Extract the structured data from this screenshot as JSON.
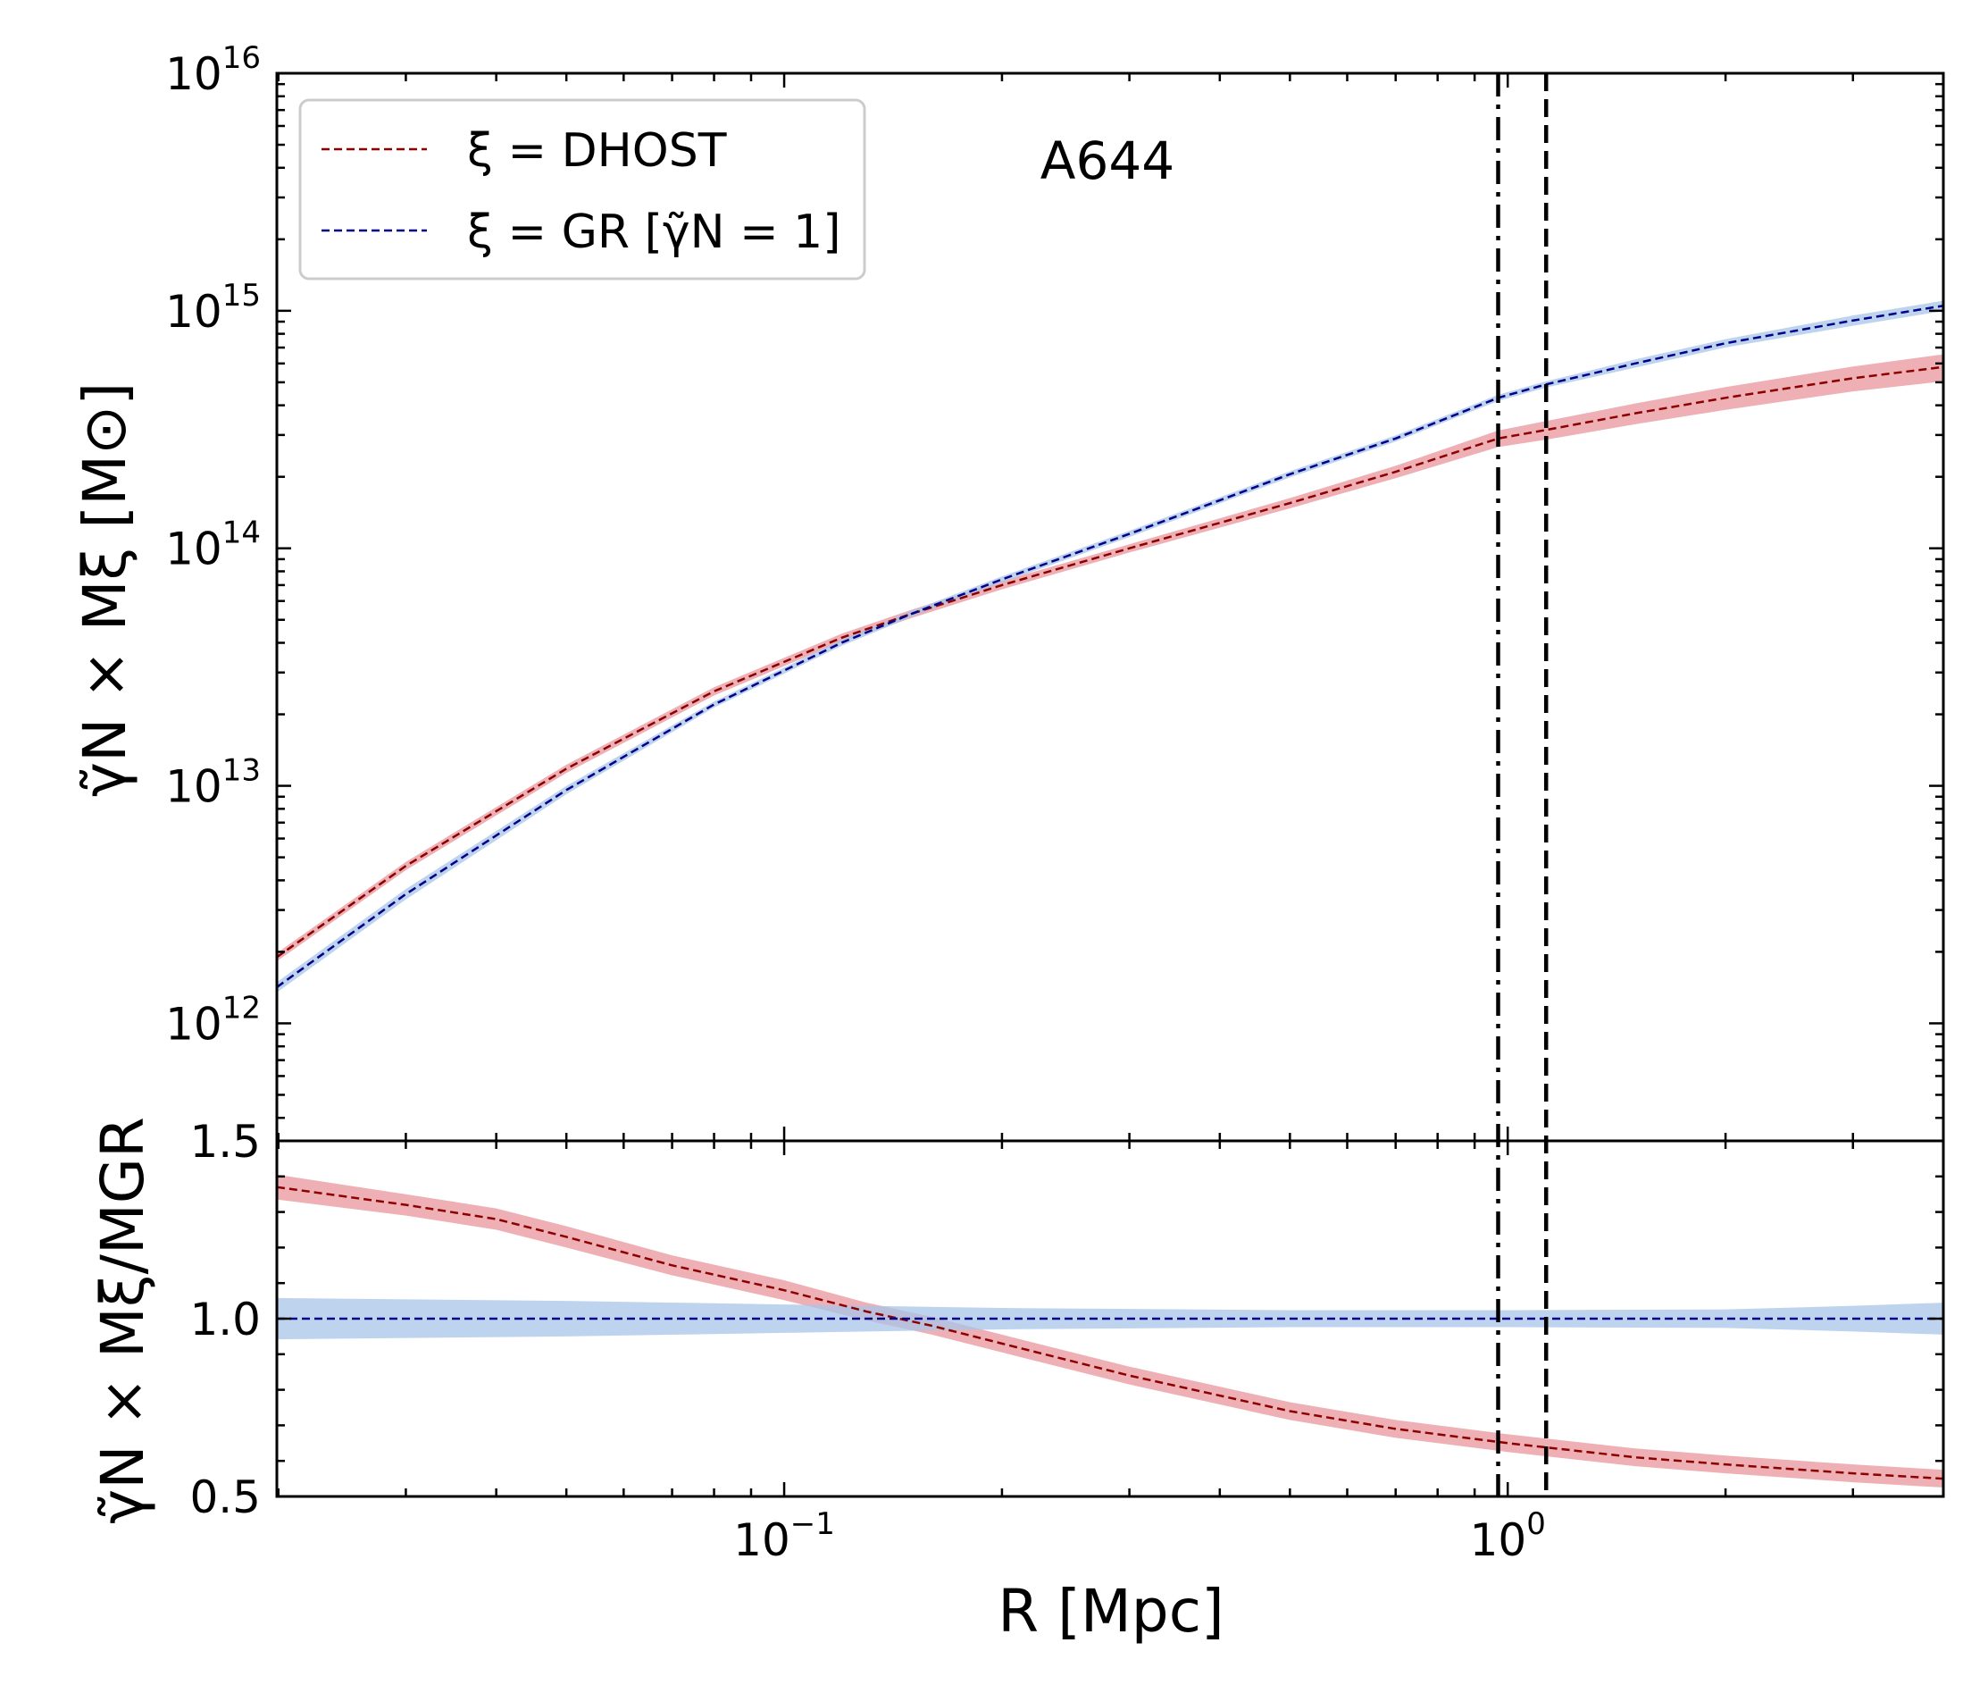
{
  "chart_data": [
    {
      "panel": "top",
      "type": "line",
      "title": "",
      "annotation": "A644",
      "xscale": "log",
      "yscale": "log",
      "xlim": [
        0.0199,
        4.0
      ],
      "ylim": [
        320000000000.0,
        1e+16
      ],
      "ylabel": "γ̃N × Mξ [M⊙]",
      "y_ticks": [
        {
          "value": 1000000000000.0,
          "base": "10",
          "exp": "12"
        },
        {
          "value": 10000000000000.0,
          "base": "10",
          "exp": "13"
        },
        {
          "value": 100000000000000.0,
          "base": "10",
          "exp": "14"
        },
        {
          "value": 1000000000000000.0,
          "base": "10",
          "exp": "15"
        },
        {
          "value": 1e+16,
          "base": "10",
          "exp": "16"
        }
      ],
      "legend": {
        "location": "upper left",
        "entries": [
          {
            "label": "ξ = DHOST",
            "series": "DHOST"
          },
          {
            "label": "ξ = GR [γ̃N = 1]",
            "series": "GR"
          }
        ]
      },
      "vlines": [
        {
          "x": 0.97,
          "style": "dash-dot"
        },
        {
          "x": 1.13,
          "style": "dashed"
        }
      ],
      "series": [
        {
          "name": "DHOST",
          "line_color": "#8b0000",
          "band_color": "#e8969b",
          "x": [
            0.0199,
            0.03,
            0.05,
            0.08,
            0.12,
            0.15,
            0.2,
            0.3,
            0.5,
            0.7,
            0.97,
            1.13,
            1.5,
            2.0,
            3.0,
            4.0
          ],
          "values": [
            1900000000000.0,
            4600000000000.0,
            11800000000000.0,
            25000000000000.0,
            42000000000000.0,
            53000000000000.0,
            70000000000000.0,
            100000000000000.0,
            155000000000000.0,
            210000000000000.0,
            290000000000000.0,
            315000000000000.0,
            370000000000000.0,
            430000000000000.0,
            520000000000000.0,
            580000000000000.0
          ],
          "band_rel": [
            0.04,
            0.04,
            0.04,
            0.04,
            0.04,
            0.04,
            0.04,
            0.04,
            0.05,
            0.06,
            0.08,
            0.09,
            0.1,
            0.11,
            0.12,
            0.13
          ]
        },
        {
          "name": "GR",
          "line_color": "#00008b",
          "band_color": "#a8c6e8",
          "x": [
            0.0199,
            0.03,
            0.05,
            0.08,
            0.12,
            0.15,
            0.2,
            0.3,
            0.5,
            0.7,
            0.97,
            1.13,
            1.5,
            2.0,
            3.0,
            4.0
          ],
          "values": [
            1420000000000.0,
            3500000000000.0,
            9600000000000.0,
            22000000000000.0,
            40000000000000.0,
            53000000000000.0,
            74000000000000.0,
            115000000000000.0,
            205000000000000.0,
            290000000000000.0,
            430000000000000.0,
            490000000000000.0,
            600000000000000.0,
            730000000000000.0,
            910000000000000.0,
            1050000000000000.0
          ],
          "band_rel": [
            0.05,
            0.05,
            0.04,
            0.03,
            0.03,
            0.03,
            0.03,
            0.03,
            0.03,
            0.03,
            0.03,
            0.03,
            0.04,
            0.04,
            0.05,
            0.05
          ]
        }
      ]
    },
    {
      "panel": "bottom",
      "type": "line",
      "title": "",
      "xscale": "log",
      "yscale": "linear",
      "xlim": [
        0.0199,
        4.0
      ],
      "ylim": [
        0.5,
        1.5
      ],
      "xlabel": "R [Mpc]",
      "ylabel": "γ̃N × Mξ/MGR",
      "x_ticks": [
        {
          "value": 0.1,
          "base": "10",
          "exp": "−1"
        },
        {
          "value": 1.0,
          "base": "10",
          "exp": "0"
        }
      ],
      "y_ticks": [
        {
          "value": 0.5,
          "label": "0.5"
        },
        {
          "value": 1.0,
          "label": "1.0"
        },
        {
          "value": 1.5,
          "label": "1.5"
        }
      ],
      "vlines": [
        {
          "x": 0.97,
          "style": "dash-dot"
        },
        {
          "x": 1.13,
          "style": "dashed"
        }
      ],
      "series": [
        {
          "name": "DHOST ratio",
          "line_color": "#8b0000",
          "band_color": "#e8969b",
          "x": [
            0.0199,
            0.03,
            0.04,
            0.05,
            0.07,
            0.1,
            0.13,
            0.16,
            0.2,
            0.3,
            0.5,
            0.7,
            1.0,
            1.5,
            2.0,
            3.0,
            4.0
          ],
          "values": [
            1.37,
            1.32,
            1.28,
            1.23,
            1.15,
            1.08,
            1.02,
            0.98,
            0.93,
            0.84,
            0.74,
            0.69,
            0.65,
            0.61,
            0.59,
            0.565,
            0.55
          ],
          "band_half": [
            0.035,
            0.03,
            0.03,
            0.03,
            0.028,
            0.028,
            0.025,
            0.025,
            0.025,
            0.025,
            0.025,
            0.025,
            0.025,
            0.025,
            0.025,
            0.025,
            0.025
          ]
        },
        {
          "name": "GR ratio",
          "line_color": "#00008b",
          "band_color": "#a8c6e8",
          "x": [
            0.0199,
            0.05,
            0.1,
            0.2,
            0.5,
            1.0,
            2.0,
            3.0,
            4.0
          ],
          "values": [
            1.0,
            1.0,
            1.0,
            1.0,
            1.0,
            1.0,
            1.0,
            1.0,
            1.0
          ],
          "band_half": [
            0.058,
            0.05,
            0.04,
            0.03,
            0.024,
            0.024,
            0.026,
            0.036,
            0.045
          ]
        }
      ]
    }
  ]
}
